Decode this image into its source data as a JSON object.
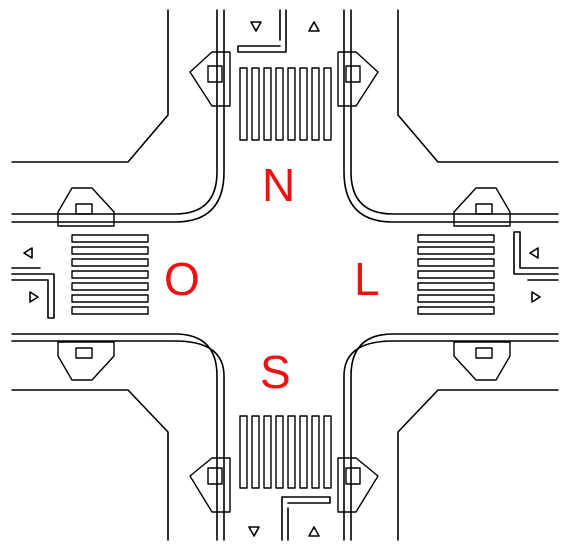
{
  "diagram": {
    "labels": {
      "north": "N",
      "west": "O",
      "east": "L",
      "south": "S"
    },
    "label_color": "#ee1111",
    "line_color": "#000000",
    "background": "#ffffff"
  }
}
